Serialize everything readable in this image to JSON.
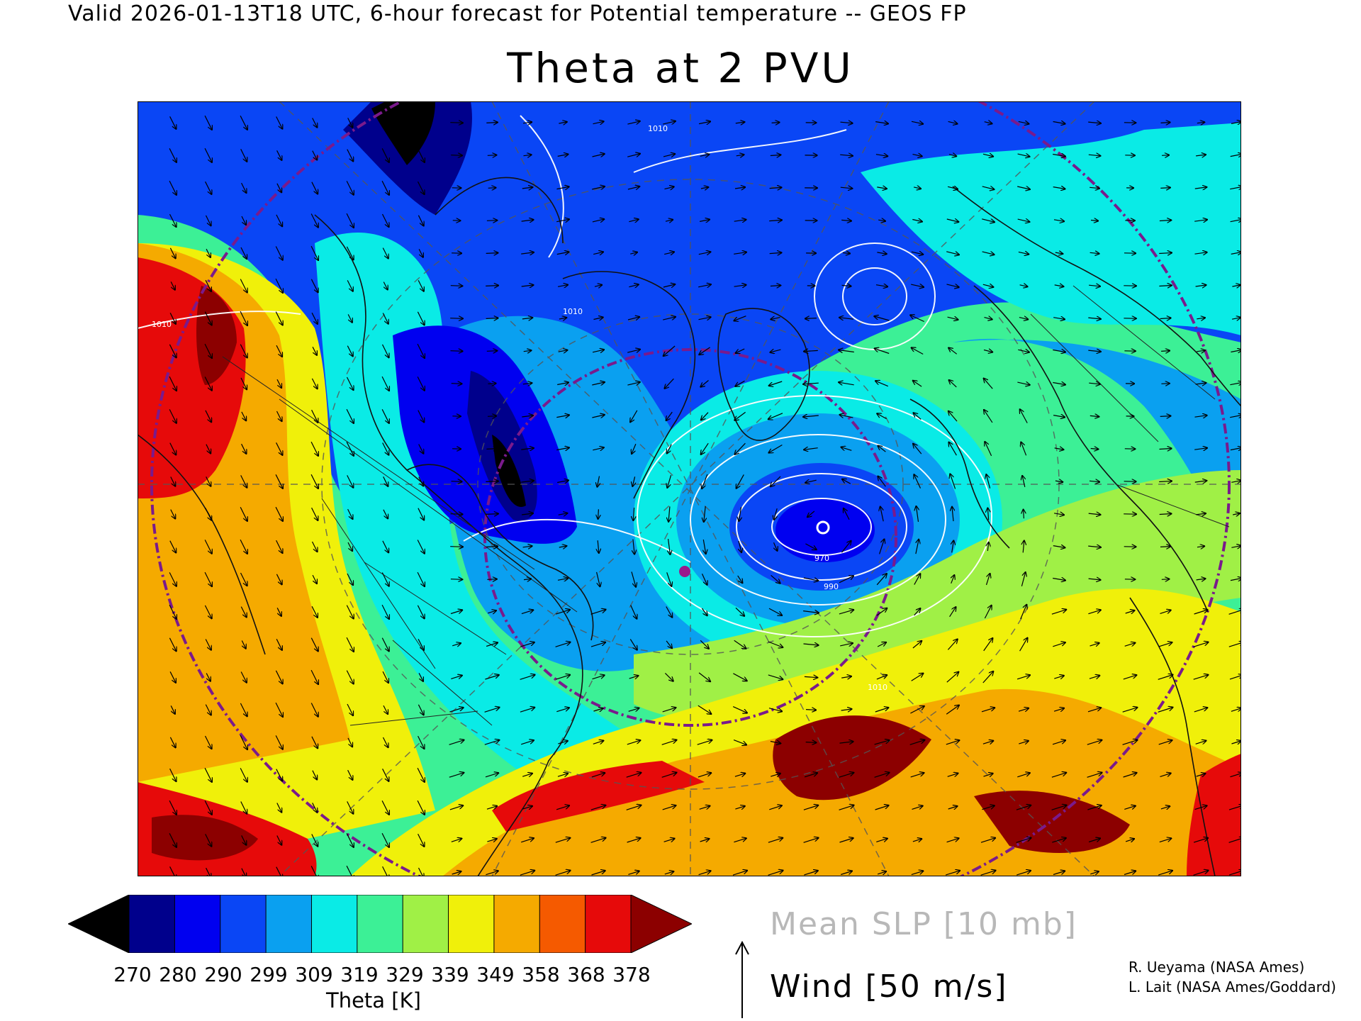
{
  "header": {
    "valid_line": "Valid 2026-01-13T18 UTC, 6-hour forecast for Potential temperature -- GEOS FP",
    "title": "Theta at 2 PVU"
  },
  "map": {
    "field": "Potential temperature on the 2 PVU surface",
    "projection": "polar stereographic, North Atlantic / North America sector",
    "overlays": [
      "Mean SLP contours",
      "wind arrows",
      "coastlines",
      "political boundaries",
      "lat-lon grid",
      "dash-dot range rings"
    ],
    "slp_contour_labels": [
      "1010",
      "1010",
      "1010",
      "970",
      "990",
      "1010"
    ],
    "features": [
      "deep low centered south of Greenland",
      "warm ridge over western North America",
      "warm subtropical band over the Atlantic",
      "cold trough over Hudson Bay / Baffin region"
    ]
  },
  "colorbar": {
    "colors": [
      "#000000",
      "#00008c",
      "#0000f0",
      "#0a46f5",
      "#0aa0f0",
      "#0aebe6",
      "#3cf096",
      "#a0f046",
      "#f0f00a",
      "#f5aa00",
      "#f55a00",
      "#e60a0a",
      "#8c0000"
    ],
    "ticks": [
      "270",
      "280",
      "290",
      "299",
      "309",
      "319",
      "329",
      "339",
      "349",
      "358",
      "368",
      "378"
    ],
    "label": "Theta [K]"
  },
  "legend": {
    "slp": "Mean SLP [10 mb]",
    "wind": "Wind [50 m/s]"
  },
  "credits": [
    "R. Ueyama (NASA Ames)",
    "L. Lait (NASA Ames/Goddard)"
  ]
}
